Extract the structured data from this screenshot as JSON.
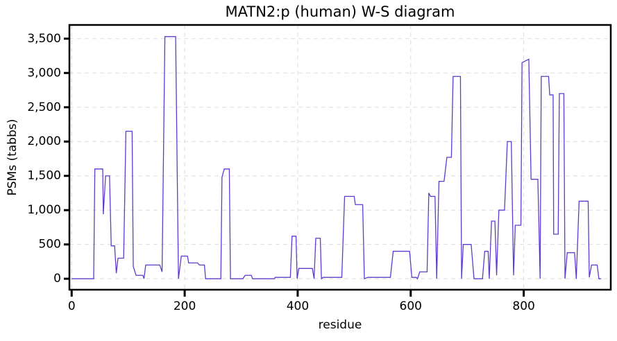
{
  "chart_data": {
    "type": "line",
    "title": "MATN2:p (human) W-S diagram",
    "xlabel": "residue",
    "ylabel": "PSMs (tabbs)",
    "x": [
      0,
      39,
      41,
      55,
      56,
      60,
      67,
      70,
      76,
      79,
      82,
      92,
      96,
      107,
      109,
      114,
      126,
      128,
      131,
      156,
      160,
      165,
      184,
      189,
      194,
      205,
      207,
      223,
      226,
      235,
      237,
      264,
      266,
      270,
      279,
      281,
      303,
      307,
      318,
      320,
      359,
      360,
      387,
      390,
      397,
      399,
      402,
      426,
      429,
      432,
      440,
      442,
      445,
      478,
      483,
      500,
      502,
      515,
      518,
      524,
      564,
      569,
      598,
      602,
      610,
      612,
      616,
      629,
      632,
      635,
      643,
      646,
      650,
      659,
      664,
      672,
      675,
      688,
      690,
      693,
      707,
      712,
      727,
      731,
      737,
      739,
      743,
      749,
      752,
      756,
      766,
      771,
      778,
      782,
      785,
      795,
      797,
      809,
      813,
      825,
      829,
      831,
      844,
      846,
      852,
      853,
      861,
      863,
      871,
      873,
      877,
      890,
      893,
      898,
      914,
      916,
      920,
      930,
      933,
      937
    ],
    "series": [
      {
        "name": "PSMs",
        "color": "#5e3bcc",
        "values": [
          0,
          0,
          1600,
          1600,
          940,
          1500,
          1500,
          480,
          480,
          80,
          300,
          300,
          2150,
          2150,
          180,
          50,
          50,
          0,
          200,
          200,
          100,
          3530,
          3530,
          0,
          330,
          330,
          230,
          230,
          200,
          200,
          0,
          0,
          1480,
          1600,
          1600,
          0,
          0,
          50,
          50,
          0,
          0,
          20,
          20,
          620,
          620,
          0,
          150,
          150,
          0,
          590,
          590,
          0,
          20,
          20,
          1200,
          1200,
          1080,
          1080,
          0,
          20,
          20,
          400,
          400,
          20,
          20,
          0,
          100,
          100,
          1250,
          1200,
          1200,
          0,
          1420,
          1420,
          1770,
          1770,
          2950,
          2950,
          0,
          500,
          500,
          0,
          0,
          400,
          400,
          0,
          840,
          840,
          50,
          1000,
          1000,
          2000,
          2000,
          50,
          780,
          780,
          3150,
          3200,
          1450,
          1450,
          0,
          2950,
          2950,
          2680,
          2680,
          650,
          650,
          2700,
          2700,
          0,
          380,
          380,
          0,
          1130,
          1130,
          20,
          200,
          200,
          0,
          0
        ]
      }
    ],
    "xlim": [
      -4,
      954
    ],
    "ylim": [
      -160,
      3700
    ],
    "xticks": [
      0,
      200,
      400,
      600,
      800
    ],
    "yticks": [
      0,
      500,
      {
        "value": 1000,
        "label": "1,000"
      },
      {
        "value": 1500,
        "label": "1,500"
      },
      {
        "value": 2000,
        "label": "2,000"
      },
      {
        "value": 2500,
        "label": "2,500"
      },
      {
        "value": 3000,
        "label": "3,000"
      },
      {
        "value": 3500,
        "label": "3,500"
      }
    ],
    "grid": true
  }
}
